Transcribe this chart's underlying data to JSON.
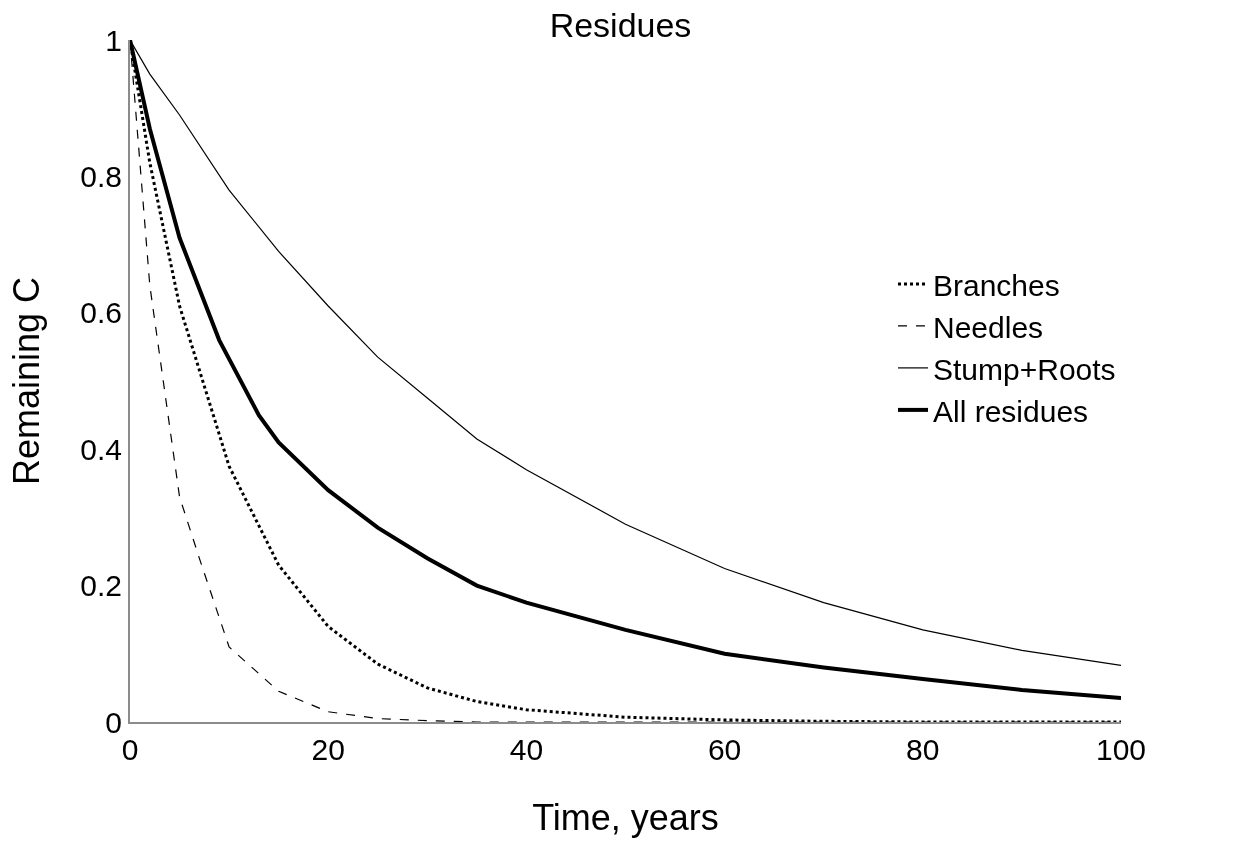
{
  "chart_data": {
    "type": "line",
    "title": "Residues",
    "xlabel": "Time, years",
    "ylabel": "Remaining C",
    "xlim": [
      0,
      100
    ],
    "xticks": [
      0,
      20,
      40,
      60,
      80,
      100
    ],
    "ylim": [
      0,
      1
    ],
    "yticks": [
      0,
      0.2,
      0.4,
      0.6,
      0.8,
      1
    ],
    "legend": "right",
    "marker": "none",
    "series": [
      {
        "name": "Branches",
        "color": "#000000",
        "line_style": "dotted",
        "x": [
          0,
          2,
          5,
          10,
          15,
          20,
          25,
          30,
          35,
          40,
          50,
          60,
          70,
          80,
          100
        ],
        "values": [
          1,
          0.82,
          0.61,
          0.375,
          0.23,
          0.14,
          0.085,
          0.05,
          0.03,
          0.018,
          0.007,
          0.003,
          0.001,
          0,
          0
        ]
      },
      {
        "name": "Needles",
        "color": "#000000",
        "line_style": "dashed",
        "x": [
          0,
          2,
          5,
          7,
          10,
          15,
          20,
          25,
          30,
          35,
          100
        ],
        "values": [
          1,
          0.64,
          0.33,
          0.24,
          0.11,
          0.045,
          0.015,
          0.005,
          0.002,
          0,
          0
        ]
      },
      {
        "name": "Stump+Roots",
        "color": "#000000",
        "line_style": "solid",
        "x": [
          0,
          2,
          5,
          10,
          15,
          20,
          25,
          30,
          35,
          40,
          50,
          60,
          70,
          80,
          90,
          100
        ],
        "values": [
          1,
          0.95,
          0.89,
          0.78,
          0.69,
          0.61,
          0.535,
          0.475,
          0.415,
          0.37,
          0.29,
          0.225,
          0.175,
          0.135,
          0.105,
          0.083
        ]
      },
      {
        "name": "All residues",
        "color": "#000000",
        "line_style": "solid",
        "x": [
          0,
          2,
          5,
          9,
          13,
          15,
          20,
          25,
          30,
          35,
          40,
          50,
          60,
          70,
          80,
          90,
          100
        ],
        "values": [
          1,
          0.87,
          0.71,
          0.56,
          0.45,
          0.41,
          0.34,
          0.285,
          0.24,
          0.2,
          0.175,
          0.135,
          0.1,
          0.08,
          0.063,
          0.047,
          0.035
        ]
      }
    ]
  }
}
